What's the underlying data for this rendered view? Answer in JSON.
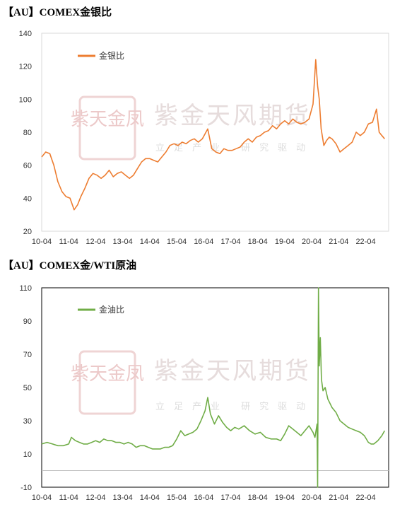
{
  "watermark": {
    "seal_text": "紫天金凤",
    "company": "紫金天风期货",
    "slogan": "立足产业 研究驱动"
  },
  "chart_data": [
    {
      "type": "line",
      "title": "【AU】COMEX金银比",
      "xlabel": "",
      "ylabel": "",
      "x_tick_labels": [
        "10-04",
        "11-04",
        "12-04",
        "13-04",
        "14-04",
        "15-04",
        "16-04",
        "17-04",
        "18-04",
        "19-04",
        "20-04",
        "21-04",
        "22-04"
      ],
      "ylim": [
        20,
        140
      ],
      "y_ticks": [
        20,
        40,
        60,
        80,
        100,
        120,
        140
      ],
      "grid": false,
      "legend": "top-left",
      "series": [
        {
          "name": "金银比",
          "color": "#ED7D31",
          "x": [
            2010.0,
            2010.15,
            2010.3,
            2010.45,
            2010.6,
            2010.75,
            2010.9,
            2011.05,
            2011.2,
            2011.33,
            2011.45,
            2011.6,
            2011.75,
            2011.9,
            2012.05,
            2012.2,
            2012.35,
            2012.5,
            2012.65,
            2012.8,
            2012.95,
            2013.1,
            2013.25,
            2013.4,
            2013.55,
            2013.7,
            2013.85,
            2014.0,
            2014.15,
            2014.3,
            2014.45,
            2014.6,
            2014.75,
            2014.9,
            2015.05,
            2015.2,
            2015.35,
            2015.5,
            2015.65,
            2015.8,
            2015.95,
            2016.05,
            2016.15,
            2016.3,
            2016.45,
            2016.6,
            2016.75,
            2016.9,
            2017.05,
            2017.2,
            2017.35,
            2017.5,
            2017.65,
            2017.8,
            2017.95,
            2018.1,
            2018.25,
            2018.4,
            2018.55,
            2018.7,
            2018.85,
            2019.0,
            2019.15,
            2019.3,
            2019.45,
            2019.6,
            2019.75,
            2019.9,
            2020.05,
            2020.15,
            2020.22,
            2020.28,
            2020.35,
            2020.45,
            2020.55,
            2020.65,
            2020.75,
            2020.9,
            2021.05,
            2021.2,
            2021.35,
            2021.5,
            2021.65,
            2021.8,
            2021.95,
            2022.1,
            2022.25,
            2022.4,
            2022.5,
            2022.6,
            2022.7
          ],
          "values": [
            65,
            68,
            67,
            60,
            50,
            44,
            41,
            40,
            33,
            36,
            41,
            46,
            52,
            55,
            54,
            52,
            54,
            57,
            53,
            55,
            56,
            54,
            52,
            54,
            58,
            62,
            64,
            64,
            63,
            62,
            65,
            68,
            72,
            73,
            72,
            74,
            73,
            75,
            76,
            74,
            76,
            79,
            82,
            70,
            68,
            67,
            70,
            69,
            69,
            70,
            71,
            74,
            76,
            74,
            77,
            78,
            80,
            81,
            84,
            82,
            85,
            87,
            85,
            88,
            86,
            85,
            86,
            88,
            97,
            124,
            108,
            100,
            82,
            72,
            75,
            77,
            76,
            73,
            68,
            70,
            72,
            74,
            80,
            78,
            80,
            85,
            86,
            94,
            80,
            78,
            76
          ]
        }
      ]
    },
    {
      "type": "line",
      "title": "【AU】COMEX金/WTI原油",
      "xlabel": "",
      "ylabel": "",
      "x_tick_labels": [
        "10-04",
        "11-04",
        "12-04",
        "13-04",
        "14-04",
        "15-04",
        "16-04",
        "17-04",
        "18-04",
        "19-04",
        "20-04",
        "21-04",
        "22-04"
      ],
      "ylim": [
        -10,
        110
      ],
      "y_ticks": [
        -10,
        10,
        30,
        50,
        70,
        90,
        110
      ],
      "grid": false,
      "legend": "top-left",
      "series": [
        {
          "name": "金油比",
          "color": "#70AD47",
          "x": [
            2010.0,
            2010.2,
            2010.4,
            2010.6,
            2010.8,
            2011.0,
            2011.1,
            2011.25,
            2011.4,
            2011.55,
            2011.7,
            2011.85,
            2012.0,
            2012.15,
            2012.3,
            2012.45,
            2012.6,
            2012.75,
            2012.9,
            2013.05,
            2013.2,
            2013.35,
            2013.5,
            2013.65,
            2013.8,
            2013.95,
            2014.1,
            2014.25,
            2014.4,
            2014.55,
            2014.7,
            2014.85,
            2015.0,
            2015.15,
            2015.3,
            2015.45,
            2015.6,
            2015.75,
            2015.9,
            2016.05,
            2016.15,
            2016.25,
            2016.4,
            2016.55,
            2016.7,
            2016.85,
            2017.0,
            2017.15,
            2017.3,
            2017.5,
            2017.7,
            2017.9,
            2018.1,
            2018.3,
            2018.5,
            2018.7,
            2018.85,
            2019.0,
            2019.15,
            2019.3,
            2019.45,
            2019.6,
            2019.75,
            2019.9,
            2020.05,
            2020.12,
            2020.2,
            2020.22,
            2020.25,
            2020.28,
            2020.32,
            2020.36,
            2020.42,
            2020.5,
            2020.6,
            2020.75,
            2020.9,
            2021.05,
            2021.2,
            2021.35,
            2021.5,
            2021.65,
            2021.8,
            2021.95,
            2022.1,
            2022.2,
            2022.3,
            2022.45,
            2022.6,
            2022.7
          ],
          "values": [
            16,
            17,
            16,
            15,
            15,
            16,
            20,
            18,
            17,
            16,
            16,
            17,
            18,
            17,
            19,
            18,
            18,
            17,
            17,
            16,
            17,
            16,
            14,
            15,
            15,
            14,
            13,
            13,
            13,
            14,
            14,
            15,
            19,
            24,
            21,
            22,
            23,
            25,
            30,
            36,
            44,
            34,
            28,
            33,
            29,
            26,
            24,
            26,
            25,
            27,
            24,
            22,
            23,
            20,
            19,
            19,
            18,
            22,
            27,
            25,
            23,
            21,
            24,
            27,
            23,
            20,
            28,
            -10,
            110,
            63,
            80,
            55,
            48,
            50,
            43,
            38,
            35,
            30,
            28,
            26,
            25,
            24,
            23,
            21,
            17,
            16,
            16,
            18,
            21,
            24
          ]
        }
      ]
    }
  ]
}
